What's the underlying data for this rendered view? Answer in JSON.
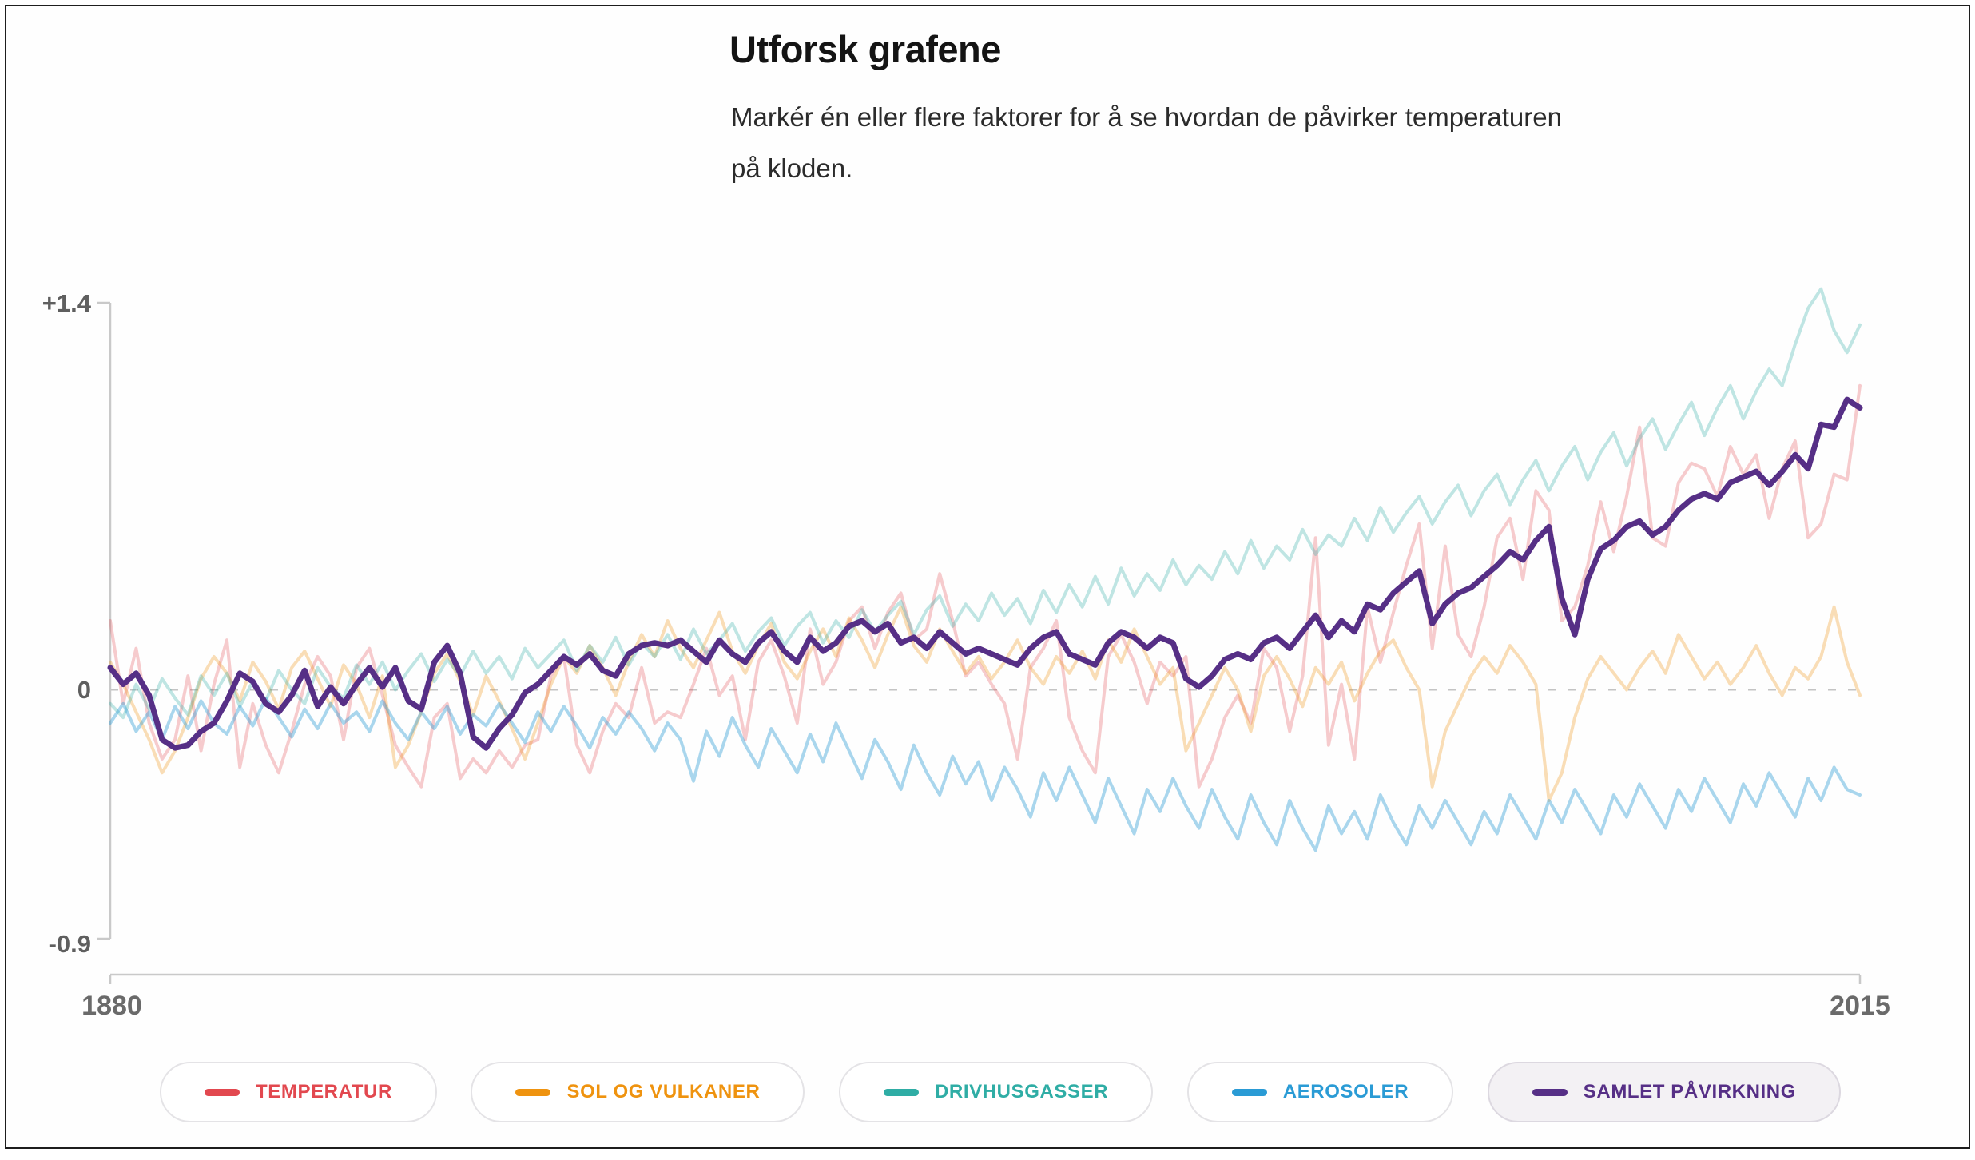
{
  "header": {
    "title": "Utforsk grafene",
    "subtitle_line1": "Markér én eller flere faktorer for å se hvordan de påvirker temperaturen",
    "subtitle_line2": "på kloden."
  },
  "chart_data": {
    "type": "line",
    "title": "Utforsk grafene",
    "xlabel": "",
    "ylabel": "",
    "x_axis": {
      "start": 1880,
      "end": 2015,
      "start_label": "1880",
      "end_label": "2015"
    },
    "y_axis": {
      "max": 1.4,
      "zero": 0,
      "min": -0.9,
      "max_label": "+1.4",
      "zero_label": "0",
      "min_label": "-0.9"
    },
    "ylim": [
      -0.9,
      1.4
    ],
    "grid": "zero-dashed-only",
    "legend_position": "bottom",
    "series": [
      {
        "name": "TEMPERATUR",
        "slug": "temperatur",
        "color": "#e2484f",
        "opacity": 0.28,
        "selected": false,
        "values": [
          0.25,
          -0.05,
          0.15,
          -0.12,
          -0.25,
          -0.18,
          0.05,
          -0.22,
          0.02,
          0.18,
          -0.28,
          -0.05,
          -0.2,
          -0.3,
          -0.15,
          0.02,
          0.12,
          0.05,
          -0.18,
          0.08,
          0.15,
          -0.02,
          -0.2,
          -0.28,
          -0.35,
          -0.1,
          -0.05,
          -0.32,
          -0.25,
          -0.3,
          -0.22,
          -0.28,
          -0.2,
          -0.18,
          0.05,
          0.12,
          -0.2,
          -0.3,
          -0.15,
          -0.05,
          -0.1,
          0.08,
          -0.12,
          -0.08,
          -0.1,
          0.02,
          0.15,
          -0.02,
          0.05,
          -0.18,
          0.1,
          0.18,
          0.05,
          -0.12,
          0.22,
          0.02,
          0.1,
          0.25,
          0.3,
          0.15,
          0.28,
          0.35,
          0.18,
          0.22,
          0.42,
          0.25,
          0.05,
          0.1,
          0.02,
          -0.05,
          -0.25,
          0.08,
          0.15,
          0.25,
          -0.1,
          -0.22,
          -0.3,
          0.12,
          0.2,
          0.1,
          -0.05,
          0.1,
          0.05,
          0.12,
          -0.35,
          -0.25,
          -0.1,
          -0.02,
          -0.12,
          0.15,
          0.08,
          -0.15,
          0.05,
          0.55,
          -0.2,
          0.02,
          -0.25,
          0.3,
          0.1,
          0.28,
          0.45,
          0.6,
          0.15,
          0.52,
          0.2,
          0.12,
          0.3,
          0.55,
          0.62,
          0.4,
          0.72,
          0.65,
          0.25,
          0.3,
          0.45,
          0.68,
          0.5,
          0.7,
          0.95,
          0.55,
          0.52,
          0.75,
          0.82,
          0.8,
          0.7,
          0.88,
          0.78,
          0.85,
          0.62,
          0.8,
          0.9,
          0.55,
          0.6,
          0.78,
          0.76,
          1.1
        ]
      },
      {
        "name": "SOL OG VULKANER",
        "slug": "sol-og-vulkaner",
        "color": "#ef930f",
        "opacity": 0.3,
        "selected": false,
        "values": [
          0.1,
          0.02,
          -0.08,
          -0.18,
          -0.3,
          -0.22,
          -0.1,
          0.04,
          0.12,
          0.06,
          -0.04,
          0.1,
          0.03,
          -0.07,
          0.08,
          0.14,
          0.04,
          -0.06,
          0.09,
          0.02,
          -0.1,
          0.05,
          -0.28,
          -0.2,
          -0.08,
          0.06,
          0.13,
          0.03,
          -0.09,
          0.05,
          -0.04,
          -0.14,
          -0.25,
          -0.12,
          0.02,
          0.12,
          0.06,
          0.16,
          0.08,
          -0.02,
          0.1,
          0.2,
          0.12,
          0.25,
          0.15,
          0.08,
          0.18,
          0.28,
          0.14,
          0.06,
          0.16,
          0.24,
          0.1,
          0.04,
          0.14,
          0.22,
          0.12,
          0.26,
          0.18,
          0.08,
          0.2,
          0.3,
          0.16,
          0.1,
          0.22,
          0.14,
          0.06,
          0.12,
          0.04,
          0.1,
          0.18,
          0.08,
          0.02,
          0.12,
          0.06,
          0.14,
          0.04,
          0.18,
          0.1,
          0.22,
          0.12,
          0.02,
          0.08,
          -0.22,
          -0.12,
          -0.02,
          0.08,
          0.0,
          -0.15,
          0.05,
          0.12,
          0.04,
          -0.06,
          0.08,
          0.02,
          0.1,
          -0.04,
          0.06,
          0.14,
          0.18,
          0.08,
          0.0,
          -0.35,
          -0.15,
          -0.05,
          0.05,
          0.12,
          0.06,
          0.16,
          0.1,
          0.02,
          -0.4,
          -0.3,
          -0.1,
          0.04,
          0.12,
          0.06,
          0.0,
          0.08,
          0.14,
          0.06,
          0.2,
          0.12,
          0.04,
          0.1,
          0.02,
          0.08,
          0.16,
          0.06,
          -0.02,
          0.08,
          0.04,
          0.12,
          0.3,
          0.1,
          -0.02
        ]
      },
      {
        "name": "DRIVHUSGASSER",
        "slug": "drivhusgasser",
        "color": "#2fada5",
        "opacity": 0.3,
        "selected": false,
        "values": [
          -0.05,
          -0.1,
          0.02,
          -0.07,
          0.04,
          -0.03,
          -0.09,
          0.05,
          -0.02,
          0.06,
          -0.06,
          0.03,
          -0.04,
          0.07,
          0.0,
          -0.05,
          0.08,
          0.01,
          -0.03,
          0.09,
          0.02,
          0.1,
          0.0,
          0.07,
          0.13,
          0.03,
          0.11,
          0.05,
          0.14,
          0.06,
          0.12,
          0.04,
          0.15,
          0.08,
          0.13,
          0.18,
          0.07,
          0.16,
          0.1,
          0.19,
          0.09,
          0.17,
          0.12,
          0.2,
          0.11,
          0.22,
          0.13,
          0.18,
          0.24,
          0.14,
          0.21,
          0.26,
          0.16,
          0.23,
          0.28,
          0.17,
          0.25,
          0.19,
          0.29,
          0.21,
          0.27,
          0.32,
          0.2,
          0.29,
          0.34,
          0.23,
          0.31,
          0.25,
          0.35,
          0.27,
          0.33,
          0.24,
          0.36,
          0.28,
          0.38,
          0.3,
          0.41,
          0.31,
          0.44,
          0.34,
          0.42,
          0.36,
          0.47,
          0.38,
          0.45,
          0.4,
          0.5,
          0.42,
          0.54,
          0.44,
          0.52,
          0.47,
          0.58,
          0.49,
          0.56,
          0.52,
          0.62,
          0.54,
          0.66,
          0.57,
          0.64,
          0.7,
          0.6,
          0.68,
          0.74,
          0.63,
          0.72,
          0.78,
          0.67,
          0.76,
          0.83,
          0.72,
          0.81,
          0.88,
          0.76,
          0.86,
          0.93,
          0.81,
          0.91,
          0.98,
          0.87,
          0.96,
          1.04,
          0.92,
          1.02,
          1.1,
          0.98,
          1.08,
          1.16,
          1.1,
          1.25,
          1.38,
          1.45,
          1.3,
          1.22,
          1.32
        ]
      },
      {
        "name": "AEROSOLER",
        "slug": "aerosoler",
        "color": "#2a9bd5",
        "opacity": 0.4,
        "selected": false,
        "values": [
          -0.12,
          -0.05,
          -0.15,
          -0.08,
          -0.18,
          -0.06,
          -0.14,
          -0.04,
          -0.12,
          -0.16,
          -0.06,
          -0.13,
          -0.03,
          -0.1,
          -0.17,
          -0.07,
          -0.14,
          -0.05,
          -0.12,
          -0.08,
          -0.15,
          -0.04,
          -0.12,
          -0.18,
          -0.08,
          -0.14,
          -0.06,
          -0.16,
          -0.09,
          -0.13,
          -0.05,
          -0.12,
          -0.19,
          -0.08,
          -0.15,
          -0.06,
          -0.13,
          -0.21,
          -0.1,
          -0.16,
          -0.08,
          -0.14,
          -0.22,
          -0.12,
          -0.18,
          -0.33,
          -0.15,
          -0.24,
          -0.1,
          -0.2,
          -0.28,
          -0.14,
          -0.22,
          -0.3,
          -0.16,
          -0.26,
          -0.12,
          -0.22,
          -0.32,
          -0.18,
          -0.26,
          -0.36,
          -0.2,
          -0.3,
          -0.38,
          -0.24,
          -0.34,
          -0.26,
          -0.4,
          -0.28,
          -0.36,
          -0.46,
          -0.3,
          -0.4,
          -0.28,
          -0.38,
          -0.48,
          -0.32,
          -0.42,
          -0.52,
          -0.36,
          -0.44,
          -0.32,
          -0.42,
          -0.5,
          -0.36,
          -0.46,
          -0.54,
          -0.38,
          -0.48,
          -0.56,
          -0.4,
          -0.5,
          -0.58,
          -0.42,
          -0.52,
          -0.44,
          -0.54,
          -0.38,
          -0.48,
          -0.56,
          -0.42,
          -0.5,
          -0.4,
          -0.48,
          -0.56,
          -0.44,
          -0.52,
          -0.38,
          -0.46,
          -0.54,
          -0.4,
          -0.48,
          -0.36,
          -0.44,
          -0.52,
          -0.38,
          -0.46,
          -0.34,
          -0.42,
          -0.5,
          -0.36,
          -0.44,
          -0.32,
          -0.4,
          -0.48,
          -0.34,
          -0.42,
          -0.3,
          -0.38,
          -0.46,
          -0.32,
          -0.4,
          -0.28,
          -0.36,
          -0.38
        ]
      },
      {
        "name": "SAMLET PÅVIRKNING",
        "slug": "samlet-pavirkning",
        "color": "#562f86",
        "opacity": 1,
        "selected": true,
        "values": [
          0.08,
          0.02,
          0.06,
          -0.02,
          -0.18,
          -0.21,
          -0.2,
          -0.15,
          -0.12,
          -0.04,
          0.06,
          0.03,
          -0.05,
          -0.08,
          -0.02,
          0.07,
          -0.06,
          0.01,
          -0.05,
          0.02,
          0.08,
          0.01,
          0.08,
          -0.04,
          -0.07,
          0.1,
          0.16,
          0.06,
          -0.17,
          -0.21,
          -0.14,
          -0.09,
          -0.01,
          0.02,
          0.07,
          0.12,
          0.09,
          0.13,
          0.07,
          0.05,
          0.13,
          0.16,
          0.17,
          0.16,
          0.18,
          0.14,
          0.1,
          0.18,
          0.13,
          0.1,
          0.17,
          0.21,
          0.14,
          0.1,
          0.19,
          0.14,
          0.17,
          0.23,
          0.25,
          0.21,
          0.24,
          0.17,
          0.19,
          0.15,
          0.21,
          0.17,
          0.13,
          0.15,
          0.13,
          0.11,
          0.09,
          0.15,
          0.19,
          0.21,
          0.13,
          0.11,
          0.09,
          0.17,
          0.21,
          0.19,
          0.15,
          0.19,
          0.17,
          0.04,
          0.01,
          0.05,
          0.11,
          0.13,
          0.11,
          0.17,
          0.19,
          0.15,
          0.21,
          0.27,
          0.19,
          0.25,
          0.21,
          0.31,
          0.29,
          0.35,
          0.39,
          0.43,
          0.24,
          0.31,
          0.35,
          0.37,
          0.41,
          0.45,
          0.5,
          0.47,
          0.54,
          0.59,
          0.33,
          0.2,
          0.4,
          0.51,
          0.54,
          0.59,
          0.61,
          0.56,
          0.59,
          0.65,
          0.69,
          0.71,
          0.69,
          0.75,
          0.77,
          0.79,
          0.74,
          0.79,
          0.85,
          0.8,
          0.96,
          0.95,
          1.05,
          1.02
        ]
      }
    ]
  }
}
